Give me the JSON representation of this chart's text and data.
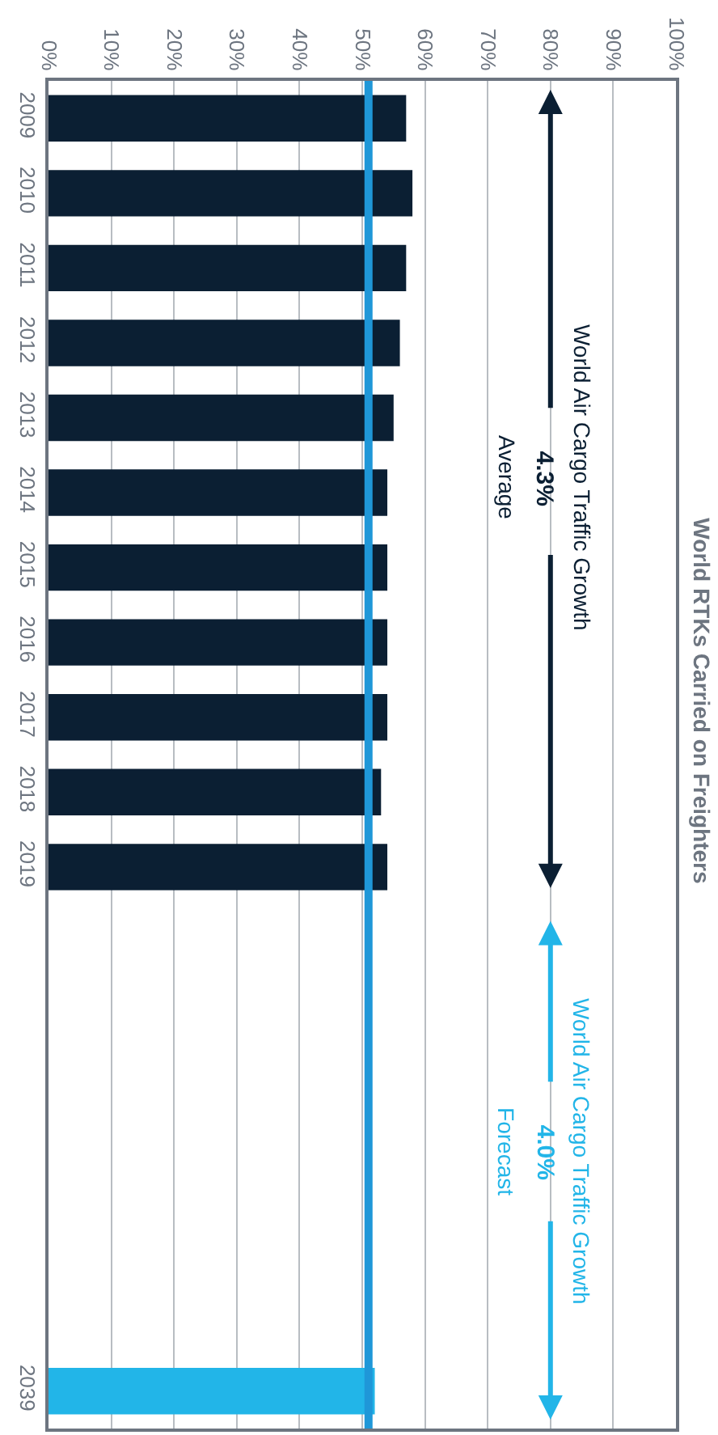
{
  "chart_data": {
    "type": "bar",
    "orientation": "horizontal",
    "title": "World RTKs Carried on Freighters",
    "categories": [
      "2009",
      "2010",
      "2011",
      "2012",
      "2013",
      "2014",
      "2015",
      "2016",
      "2017",
      "2018",
      "2019",
      null,
      null,
      null,
      null,
      null,
      null,
      "2039"
    ],
    "values": [
      57,
      58,
      57,
      56,
      55,
      54,
      54,
      54,
      54,
      53,
      54,
      null,
      null,
      null,
      null,
      null,
      null,
      52
    ],
    "colors": [
      "#0b1f33",
      "#0b1f33",
      "#0b1f33",
      "#0b1f33",
      "#0b1f33",
      "#0b1f33",
      "#0b1f33",
      "#0b1f33",
      "#0b1f33",
      "#0b1f33",
      "#0b1f33",
      null,
      null,
      null,
      null,
      null,
      null,
      "#22b5e8"
    ],
    "xlim": [
      0,
      100
    ],
    "xticks": [
      {
        "value": 0,
        "label": "0%"
      },
      {
        "value": 10,
        "label": "10%"
      },
      {
        "value": 20,
        "label": "20%"
      },
      {
        "value": 30,
        "label": "30%"
      },
      {
        "value": 40,
        "label": "40%"
      },
      {
        "value": 50,
        "label": "50%"
      },
      {
        "value": 60,
        "label": "60%"
      },
      {
        "value": 70,
        "label": "70%"
      },
      {
        "value": 80,
        "label": "80%"
      },
      {
        "value": 90,
        "label": "90%"
      },
      {
        "value": 100,
        "label": "100%"
      }
    ],
    "grid": "x",
    "ref_lines": [
      {
        "axis": "x",
        "value": 51,
        "color": "#1f97d8"
      }
    ],
    "annotations": [
      "World Air Cargo Traffic Growth",
      "4.3%",
      "Average",
      "World Air Cargo Traffic Growth",
      "4.0%",
      "Forecast"
    ]
  }
}
